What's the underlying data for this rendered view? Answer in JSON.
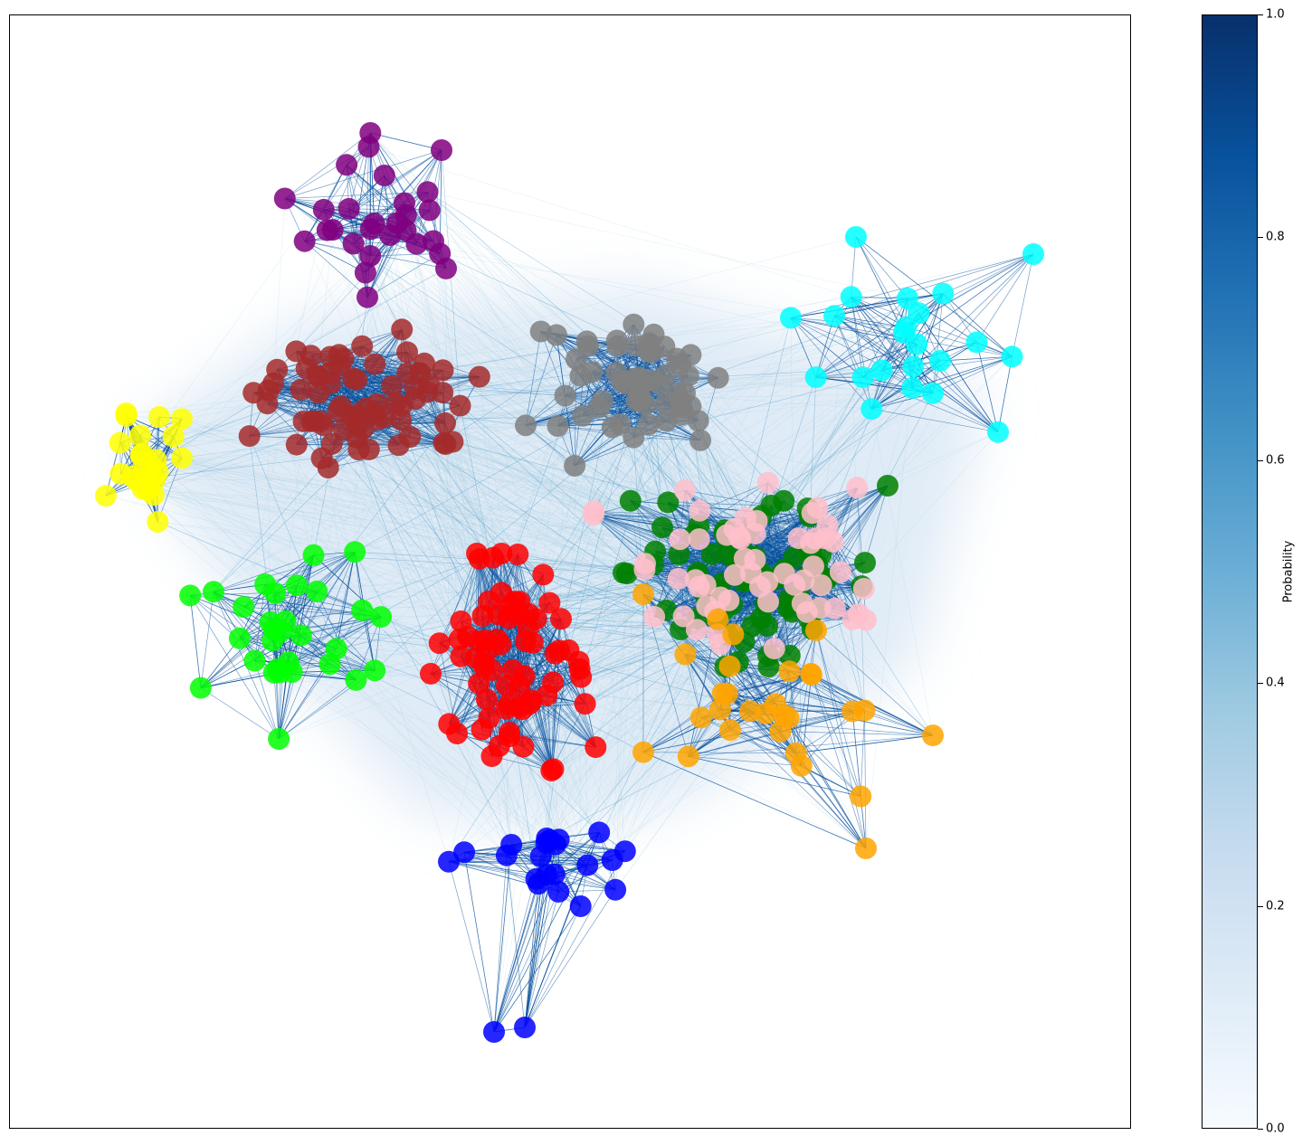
{
  "chart_data": {
    "type": "network-graph",
    "title": "",
    "xlabel": "",
    "ylabel": "",
    "colorbar": {
      "label": "Probability",
      "range": [
        0.0,
        1.0
      ],
      "ticks": [
        "0.0",
        "0.2",
        "0.4",
        "0.6",
        "0.8",
        "1.0"
      ],
      "colormap": "Blues",
      "colors": [
        "#f7fbff",
        "#deebf7",
        "#c6dbef",
        "#9ecae1",
        "#6baed6",
        "#4292c6",
        "#2171b5",
        "#08519c",
        "#08306b"
      ]
    },
    "edge_color_strong": "#08519c",
    "edge_color_weak": "#c6dbef",
    "grid": false,
    "communities": [
      {
        "color": "#800080",
        "count": 28
      },
      {
        "color": "#a52a2a",
        "count": 70
      },
      {
        "color": "#808080",
        "count": 55
      },
      {
        "color": "#00ffff",
        "count": 20
      },
      {
        "color": "#ffff00",
        "count": 26
      },
      {
        "color": "#00ff00",
        "count": 30
      },
      {
        "color": "#ff0000",
        "count": 70
      },
      {
        "color": "#008000",
        "count": 85
      },
      {
        "color": "#ffc0cb",
        "count": 60
      },
      {
        "color": "#ffa500",
        "count": 28
      },
      {
        "color": "#0000ff",
        "count": 21
      }
    ]
  }
}
